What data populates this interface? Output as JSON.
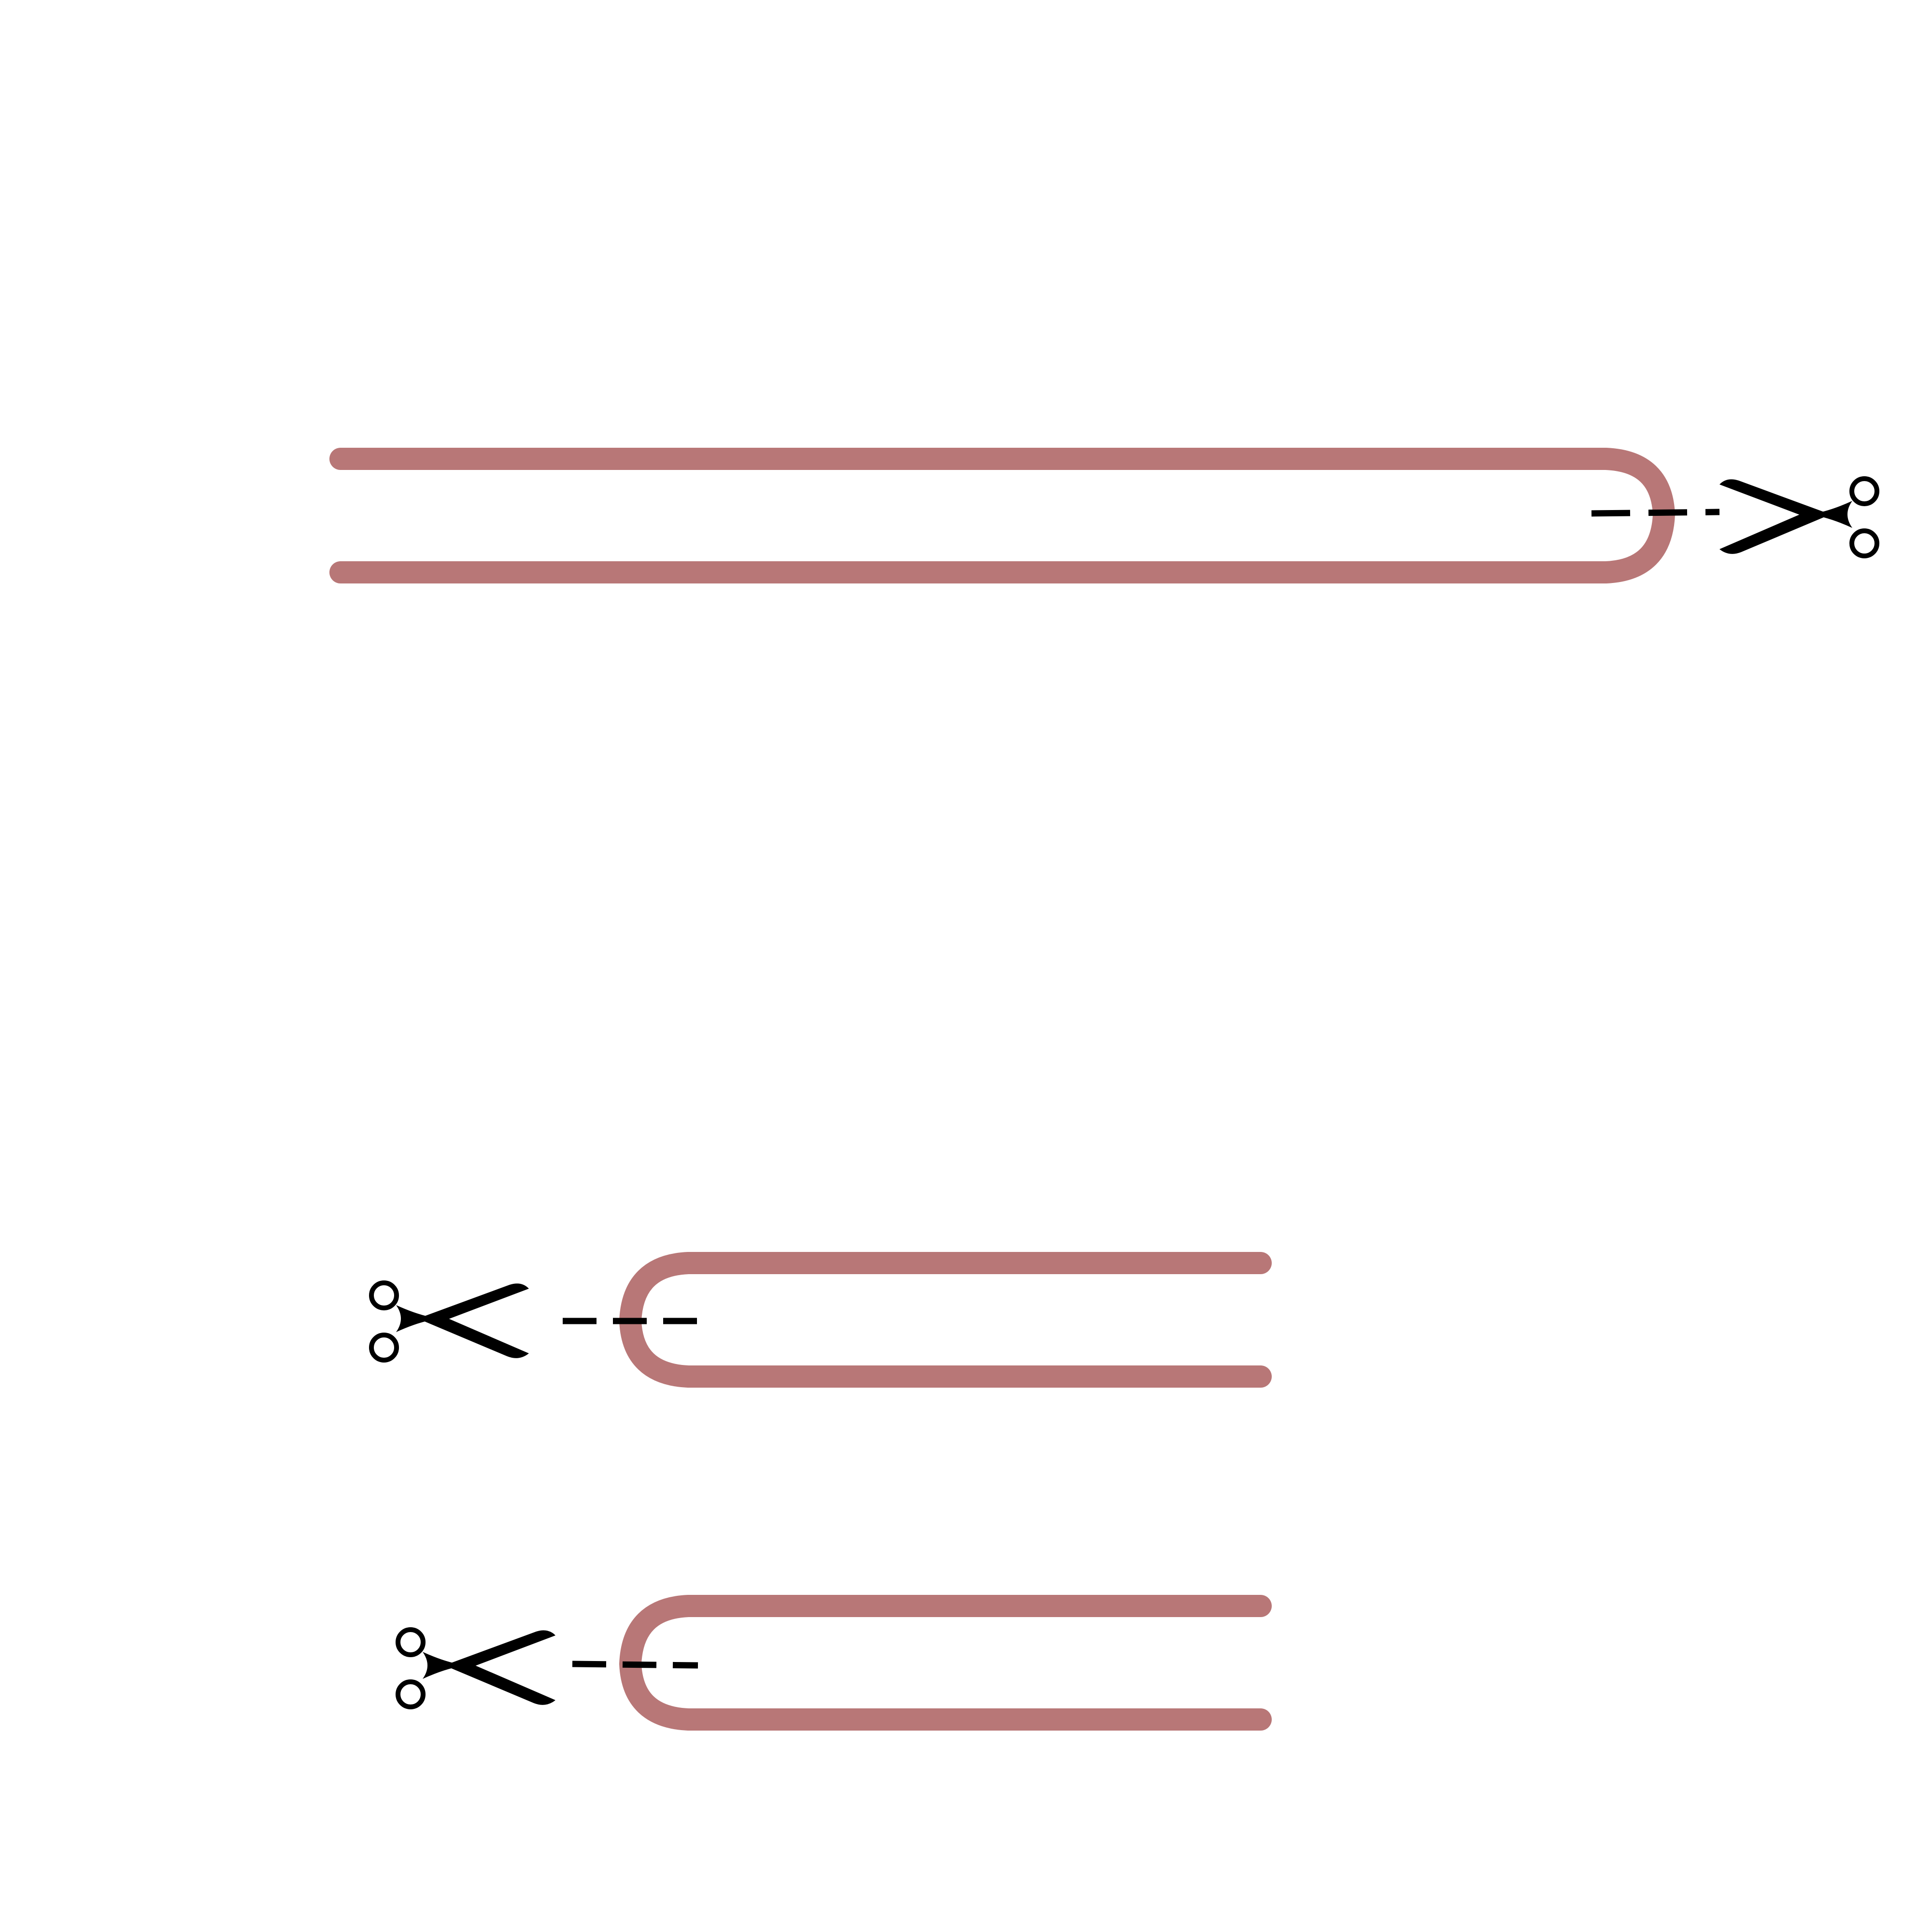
{
  "diagram": {
    "colors": {
      "background": "#ffffff",
      "loop": "#b87777",
      "cut_line": "#000000",
      "scissors": "#000000"
    },
    "pieces": [
      {
        "name": "long-folded-strip",
        "fold_side": "right",
        "scissors_icon": "scissors-icon"
      },
      {
        "name": "short-folded-strip-1",
        "fold_side": "left",
        "scissors_icon": "scissors-icon"
      },
      {
        "name": "short-folded-strip-2",
        "fold_side": "left",
        "scissors_icon": "scissors-icon"
      }
    ]
  }
}
